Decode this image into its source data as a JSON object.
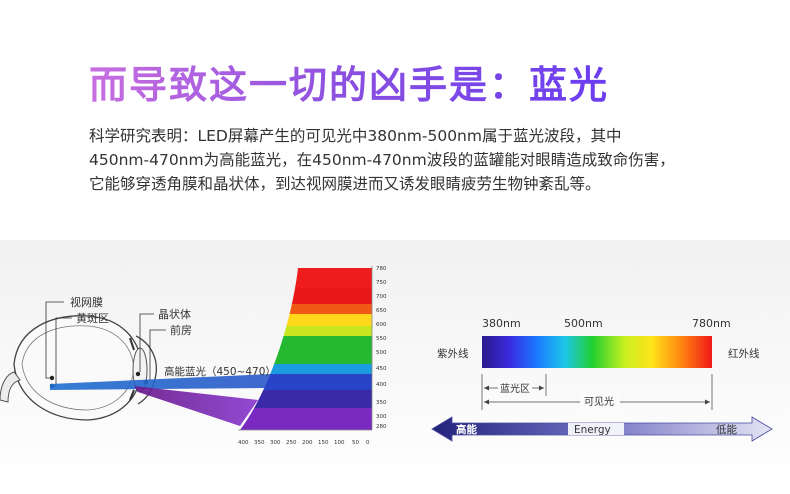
{
  "headline": "而导致这一切的凶手是：蓝光",
  "body": {
    "lines": [
      "科学研究表明：LED屏幕产生的可见光中380nm-500nm属于蓝光波段，其中",
      "450nm-470nm为高能蓝光，在450nm-470nm波段的蓝罐能对眼睛造成致命伤害，",
      "它能够穿透角膜和晶状体，到达视网膜进而又诱发眼睛疲劳生物钟紊乱等。"
    ]
  },
  "eye_diagram": {
    "labels": {
      "retina": "视网膜",
      "macula": "黄斑区",
      "lens": "晶状体",
      "anterior_chamber": "前房",
      "high_energy_blue": "高能蓝光（450~470）"
    },
    "spectrum_y_ticks": [
      "780",
      "750",
      "700",
      "650",
      "600",
      "550",
      "500",
      "450",
      "400",
      "350",
      "300",
      "280"
    ],
    "spectrum_x_ticks": [
      "400",
      "350",
      "300",
      "250",
      "200",
      "150",
      "100",
      "50",
      "0"
    ]
  },
  "spectrum_bar": {
    "tick_labels": [
      "380nm",
      "500nm",
      "780nm"
    ],
    "left_label": "紫外线",
    "right_label": "红外线",
    "blue_zone_label": "蓝光区",
    "visible_label": "可见光",
    "energy_arrow": {
      "left": "高能",
      "center": "Energy",
      "right": "低能"
    }
  },
  "colors": {
    "headline_start": "#c86ee0",
    "headline_end": "#6a3df0",
    "energy_dark": "#2a2a8a",
    "energy_light": "#dcdcf2"
  }
}
